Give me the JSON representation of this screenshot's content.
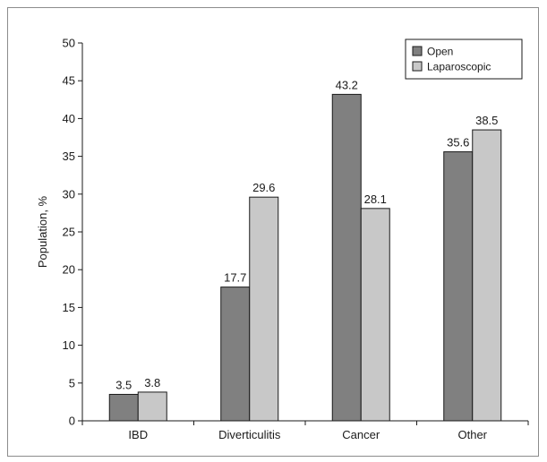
{
  "chart_data": {
    "type": "bar",
    "title": "",
    "xlabel": "",
    "ylabel": "Population, %",
    "ylim": [
      0,
      50
    ],
    "yticks": [
      0,
      5,
      10,
      15,
      20,
      25,
      30,
      35,
      40,
      45,
      50
    ],
    "categories": [
      "IBD",
      "Diverticulitis",
      "Cancer",
      "Other"
    ],
    "series": [
      {
        "name": "Open",
        "values": [
          3.5,
          17.7,
          43.2,
          35.6
        ],
        "color": "#808080"
      },
      {
        "name": "Laparoscopic",
        "values": [
          3.8,
          29.6,
          28.1,
          38.5
        ],
        "color": "#c8c8c8"
      }
    ],
    "data_labels": [
      [
        "3.5",
        "17.7",
        "43.2",
        "35.6"
      ],
      [
        "3.8",
        "29.6",
        "28.1",
        "38.5"
      ]
    ],
    "legend": {
      "placement": "top-right",
      "entries": [
        "Open",
        "Laparoscopic"
      ]
    },
    "grid": false
  }
}
